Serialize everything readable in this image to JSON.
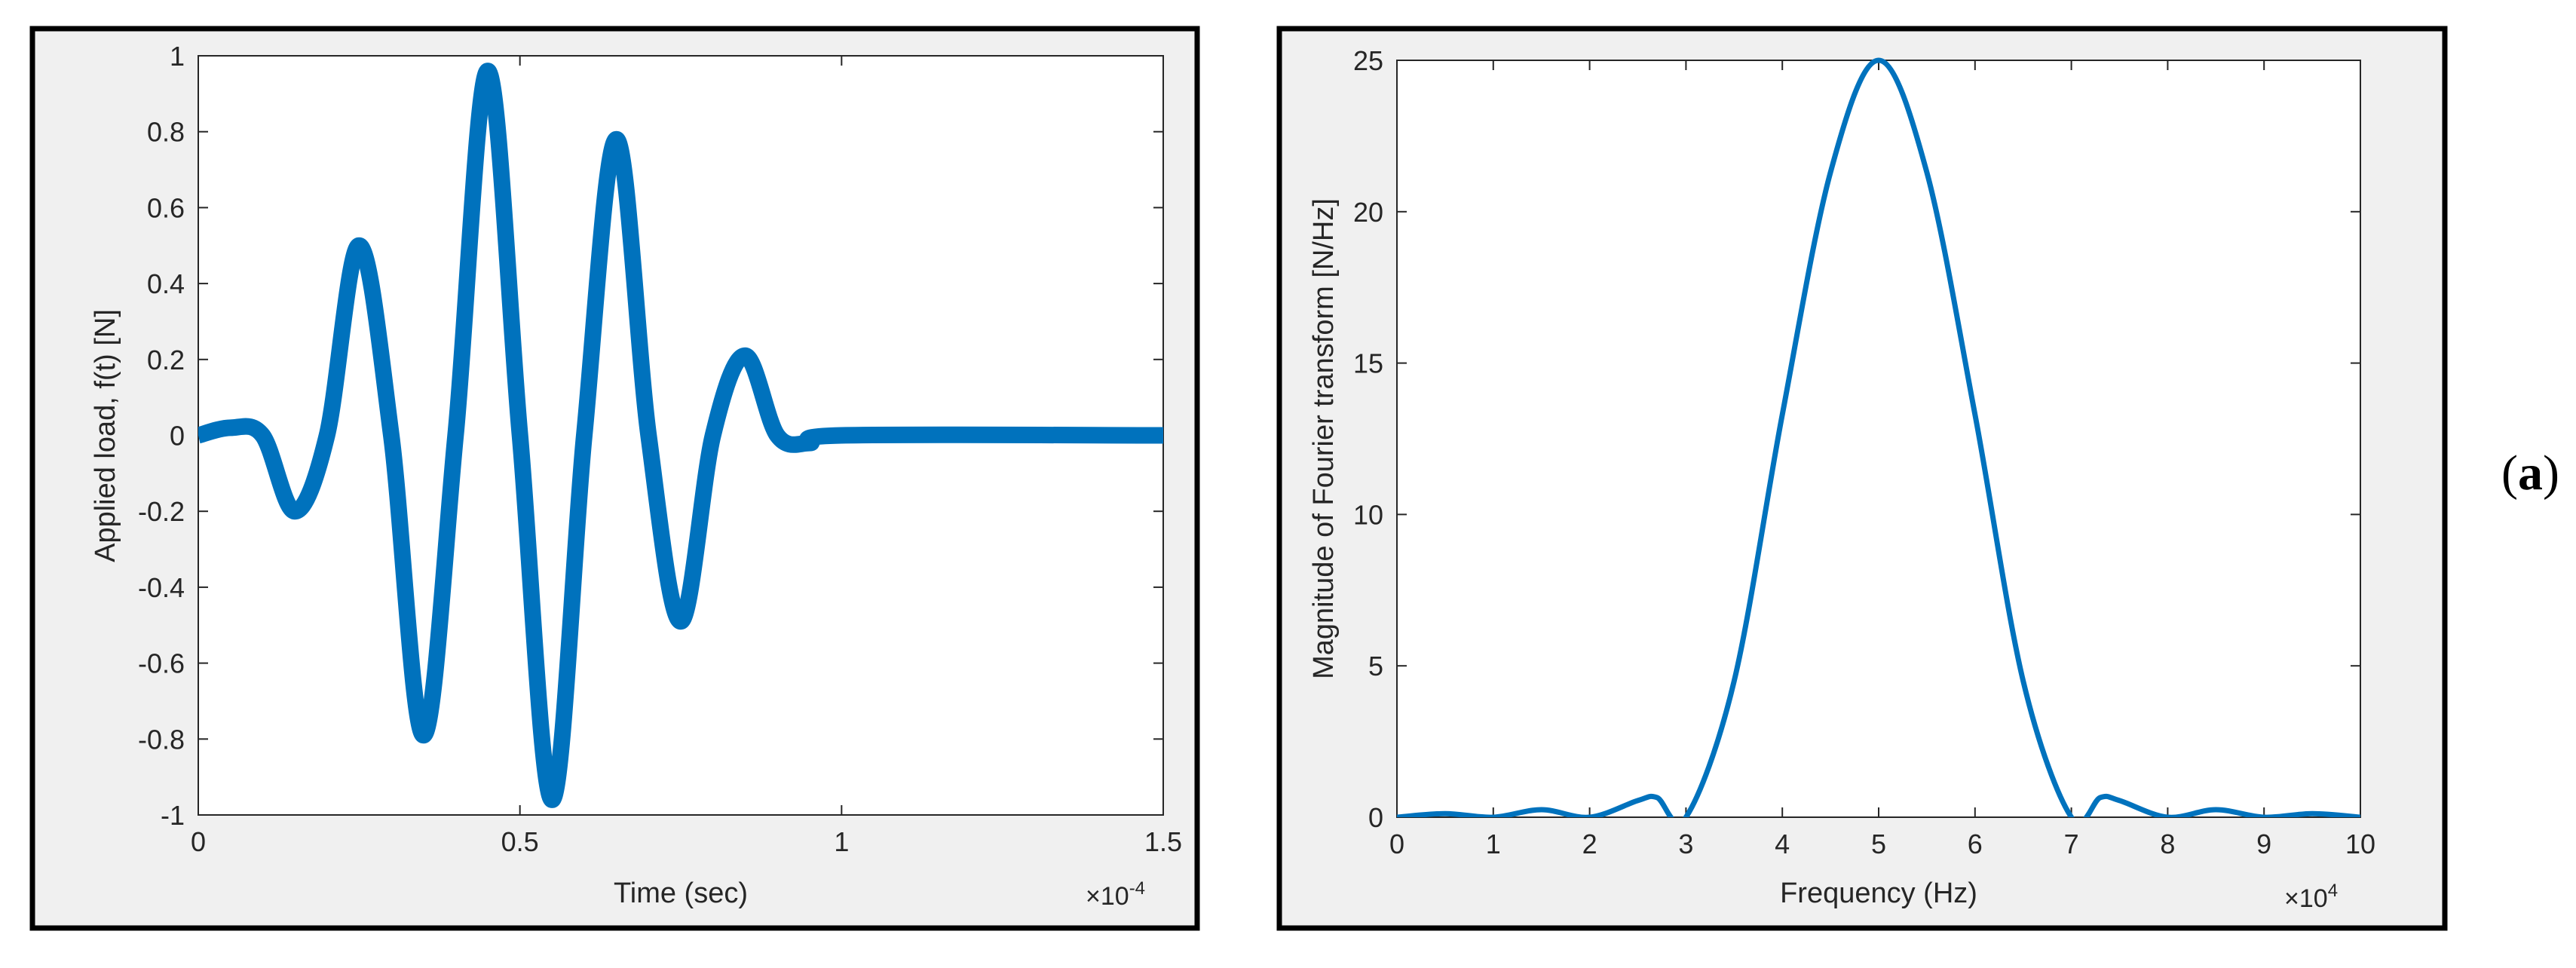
{
  "panel_label": {
    "open": "(",
    "letter": "a",
    "close": ")"
  },
  "chart_data": [
    {
      "type": "line",
      "title": "",
      "xlabel": "Time (sec)",
      "ylabel": "Applied load, f(t) [N]",
      "xlim": [
        0,
        1.5
      ],
      "ylim": [
        -1,
        1
      ],
      "x_multiplier": {
        "base": "×10",
        "exp": "-4"
      },
      "xticks": [
        0,
        0.5,
        1,
        1.5
      ],
      "xtick_labels": [
        "0",
        "0.5",
        "1",
        "1.5"
      ],
      "yticks": [
        -1,
        -0.8,
        -0.6,
        -0.4,
        -0.2,
        0,
        0.2,
        0.4,
        0.6,
        0.8,
        1
      ],
      "ytick_labels": [
        "-1",
        "-0.8",
        "-0.6",
        "-0.4",
        "-0.2",
        "0",
        "0.2",
        "0.4",
        "0.6",
        "0.8",
        "1"
      ],
      "grid": false,
      "color": "#0072BD",
      "series": [
        {
          "x": [
            0,
            0.05,
            0.1,
            0.15,
            0.2,
            0.25,
            0.3,
            0.35,
            0.4,
            0.45,
            0.5,
            0.55,
            0.6,
            0.65,
            0.7,
            0.75,
            0.8,
            0.85,
            0.9,
            0.95,
            1.0,
            1.5
          ],
          "y": [
            0,
            0.02,
            0,
            -0.2,
            0,
            0.5,
            0,
            -0.79,
            0,
            0.96,
            0,
            -0.96,
            0,
            0.78,
            0,
            -0.49,
            0,
            0.21,
            0,
            -0.02,
            0,
            0
          ]
        }
      ]
    },
    {
      "type": "line",
      "title": "",
      "xlabel": "Frequency (Hz)",
      "ylabel": "Magnitude of Fourier transform [N/Hz]",
      "xlim": [
        0,
        10
      ],
      "ylim": [
        0,
        25
      ],
      "x_multiplier": {
        "base": "×10",
        "exp": "4"
      },
      "xticks": [
        0,
        1,
        2,
        3,
        4,
        5,
        6,
        7,
        8,
        9,
        10
      ],
      "xtick_labels": [
        "0",
        "1",
        "2",
        "3",
        "4",
        "5",
        "6",
        "7",
        "8",
        "9",
        "10"
      ],
      "yticks": [
        0,
        5,
        10,
        15,
        20,
        25
      ],
      "ytick_labels": [
        "0",
        "5",
        "10",
        "15",
        "20",
        "25"
      ],
      "grid": false,
      "color": "#0072BD",
      "series": [
        {
          "x": [
            0,
            0.5,
            1,
            1.5,
            2,
            2.5,
            2.7,
            3,
            3.5,
            4,
            4.5,
            5,
            5.5,
            6,
            6.5,
            7,
            7.3,
            7.5,
            8,
            8.5,
            9,
            9.5,
            10
          ],
          "y": [
            0,
            0.12,
            0,
            0.25,
            0,
            0.55,
            0.65,
            0,
            4.5,
            13.3,
            21.3,
            25,
            21.3,
            13.3,
            4.5,
            0,
            0.65,
            0.55,
            0,
            0.25,
            0,
            0.12,
            0
          ]
        }
      ]
    }
  ]
}
